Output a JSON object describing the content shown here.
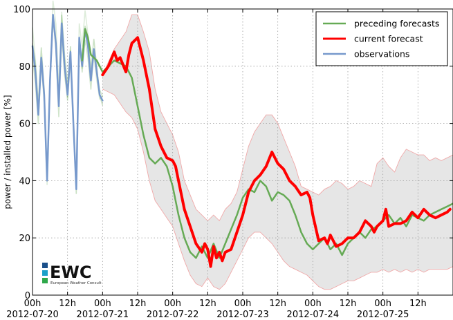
{
  "chart_data": {
    "type": "line",
    "title": "",
    "ylabel": "power / installed power [%]",
    "xlabel": "",
    "ylim": [
      0,
      100
    ],
    "xlim_hours": [
      0,
      144
    ],
    "grid": true,
    "legend_position": "top-right",
    "y_ticks": [
      "0",
      "20",
      "40",
      "60",
      "80",
      "100"
    ],
    "x_ticks": [
      {
        "h": 0,
        "label": "00h"
      },
      {
        "h": 12,
        "label": "12h"
      },
      {
        "h": 24,
        "label": "00h"
      },
      {
        "h": 36,
        "label": "12h"
      },
      {
        "h": 48,
        "label": "00h"
      },
      {
        "h": 60,
        "label": "12h"
      },
      {
        "h": 72,
        "label": "00h"
      },
      {
        "h": 84,
        "label": "12h"
      },
      {
        "h": 96,
        "label": "00h"
      },
      {
        "h": 108,
        "label": "12h"
      },
      {
        "h": 120,
        "label": "00h"
      },
      {
        "h": 132,
        "label": "12h"
      }
    ],
    "date_labels": [
      {
        "h": 0,
        "label": "2012-07-20"
      },
      {
        "h": 24,
        "label": "2012-07-21"
      },
      {
        "h": 48,
        "label": "2012-07-22"
      },
      {
        "h": 72,
        "label": "2012-07-23"
      },
      {
        "h": 96,
        "label": "2012-07-24"
      },
      {
        "h": 120,
        "label": "2012-07-25"
      }
    ],
    "series": [
      {
        "name": "observations",
        "color": "#7799cc",
        "width": 2.5,
        "x": [
          0,
          1,
          2,
          3,
          4,
          5,
          6,
          7,
          8,
          9,
          10,
          11,
          12,
          13,
          14,
          15,
          16,
          17,
          18,
          19,
          20,
          21,
          22,
          23,
          24
        ],
        "y": [
          87,
          78,
          63,
          83,
          70,
          40,
          75,
          98,
          88,
          66,
          95,
          80,
          70,
          85,
          60,
          37,
          90,
          80,
          93,
          87,
          75,
          86,
          78,
          70,
          68
        ]
      },
      {
        "name": "preceding forecasts",
        "color": "#66aa55",
        "width": 2.5,
        "x": [
          17,
          18,
          19,
          20,
          22,
          24,
          26,
          28,
          30,
          32,
          34,
          36,
          38,
          40,
          42,
          44,
          46,
          48,
          50,
          52,
          54,
          56,
          58,
          60,
          62,
          64,
          66,
          68,
          70,
          72,
          74,
          76,
          78,
          80,
          82,
          84,
          86,
          88,
          90,
          92,
          94,
          96,
          98,
          100,
          102,
          104,
          106,
          108,
          110,
          112,
          114,
          116,
          118,
          120,
          122,
          124,
          126,
          128,
          130,
          132,
          134,
          136,
          138,
          140,
          142,
          144
        ],
        "y": [
          82,
          93,
          90,
          84,
          82,
          78,
          80,
          82,
          81,
          80,
          76,
          66,
          56,
          48,
          46,
          48,
          45,
          38,
          28,
          20,
          15,
          13,
          17,
          13,
          18,
          13,
          18,
          23,
          28,
          34,
          37,
          36,
          40,
          38,
          33,
          36,
          35,
          33,
          28,
          22,
          18,
          16,
          18,
          20,
          16,
          18,
          14,
          18,
          20,
          22,
          20,
          23,
          24,
          26,
          28,
          25,
          27,
          24,
          28,
          27,
          26,
          28,
          29,
          30,
          31,
          32
        ]
      },
      {
        "name": "current forecast",
        "color": "#ff0000",
        "width": 4,
        "x": [
          24,
          26,
          28,
          29,
          30,
          32,
          33,
          34,
          36,
          38,
          40,
          42,
          44,
          46,
          48,
          49,
          50,
          52,
          54,
          56,
          58,
          59,
          60,
          61,
          62,
          63,
          64,
          65,
          66,
          68,
          70,
          72,
          74,
          76,
          78,
          80,
          82,
          84,
          86,
          88,
          90,
          92,
          94,
          95,
          96,
          98,
          100,
          101,
          102,
          104,
          106,
          108,
          110,
          112,
          114,
          116,
          117,
          118,
          120,
          121,
          122,
          124,
          126,
          128,
          130,
          132,
          134,
          136,
          138,
          140,
          142,
          143
        ],
        "y": [
          77,
          80,
          85,
          82,
          83,
          78,
          84,
          88,
          90,
          82,
          72,
          58,
          52,
          48,
          47,
          45,
          40,
          30,
          24,
          18,
          15,
          18,
          16,
          10,
          17,
          13,
          15,
          12,
          15,
          16,
          22,
          28,
          36,
          40,
          42,
          45,
          50,
          46,
          44,
          40,
          38,
          35,
          36,
          34,
          28,
          19,
          20,
          18,
          21,
          17,
          18,
          20,
          20,
          22,
          26,
          24,
          22,
          24,
          26,
          30,
          24,
          25,
          25,
          26,
          29,
          27,
          30,
          28,
          27,
          28,
          29,
          30
        ]
      }
    ],
    "band": {
      "color": "#f0a8a8",
      "x": [
        24,
        28,
        32,
        34,
        36,
        38,
        40,
        42,
        44,
        46,
        48,
        50,
        52,
        54,
        56,
        58,
        60,
        62,
        64,
        66,
        68,
        70,
        72,
        74,
        76,
        78,
        80,
        82,
        84,
        86,
        88,
        90,
        92,
        94,
        96,
        98,
        100,
        102,
        104,
        106,
        108,
        110,
        112,
        114,
        116,
        118,
        120,
        122,
        124,
        126,
        128,
        130,
        132,
        134,
        136,
        138,
        140,
        142,
        144
      ],
      "upper": [
        77,
        86,
        92,
        98,
        98,
        92,
        85,
        72,
        64,
        60,
        56,
        50,
        40,
        35,
        30,
        28,
        26,
        28,
        26,
        30,
        32,
        36,
        44,
        52,
        57,
        60,
        63,
        63,
        60,
        55,
        50,
        45,
        38,
        37,
        36,
        35,
        37,
        38,
        40,
        39,
        37,
        38,
        40,
        39,
        38,
        46,
        48,
        45,
        43,
        48,
        51,
        50,
        49,
        49,
        47,
        48,
        47,
        48,
        49
      ],
      "lower": [
        72,
        70,
        64,
        62,
        58,
        50,
        40,
        33,
        30,
        27,
        24,
        18,
        12,
        7,
        4,
        3,
        6,
        3,
        2,
        4,
        8,
        12,
        16,
        20,
        22,
        22,
        20,
        18,
        15,
        12,
        10,
        9,
        8,
        7,
        5,
        3,
        2,
        2,
        3,
        4,
        5,
        5,
        6,
        7,
        8,
        8,
        9,
        8,
        9,
        8,
        9,
        8,
        9,
        8,
        9,
        9,
        9,
        9,
        10
      ]
    },
    "legend": [
      "preceding forecasts",
      "current forecast",
      "observations"
    ]
  },
  "logo": {
    "name": "EWC",
    "subtitle": "European Weather Consult"
  }
}
